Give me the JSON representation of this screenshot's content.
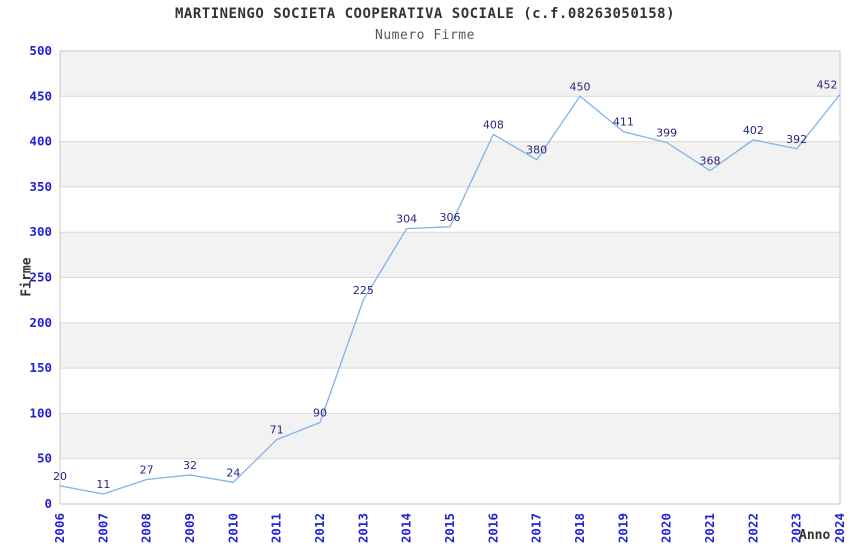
{
  "page": {
    "title": "MARTINENGO SOCIETA COOPERATIVA SOCIALE (c.f.08263050158)",
    "subtitle": "Numero Firme"
  },
  "chart_data": {
    "type": "line",
    "title": "MARTINENGO SOCIETA COOPERATIVA SOCIALE (c.f.08263050158)",
    "subtitle": "Numero Firme",
    "xlabel": "Anno",
    "ylabel": "Firme",
    "categories": [
      "2006",
      "2007",
      "2008",
      "2009",
      "2010",
      "2011",
      "2012",
      "2013",
      "2014",
      "2015",
      "2016",
      "2017",
      "2018",
      "2019",
      "2020",
      "2021",
      "2022",
      "2023",
      "2024"
    ],
    "values": [
      20,
      11,
      27,
      32,
      24,
      71,
      90,
      225,
      304,
      306,
      408,
      380,
      450,
      411,
      399,
      368,
      402,
      392,
      452
    ],
    "ylim": [
      0,
      500
    ],
    "ytick_step": 50,
    "grid": true,
    "plot_bands_alternating": true,
    "legend_position": "none",
    "colors": {
      "line": "#7fb3e9",
      "tick_label": "#2323cf",
      "data_label": "#28287d",
      "band": "#f2f2f2",
      "grid_line": "#d9d9d9",
      "plot_border": "#c8c8c8",
      "title": "#333333",
      "subtitle": "#585858",
      "axis_title": "#333333"
    }
  }
}
